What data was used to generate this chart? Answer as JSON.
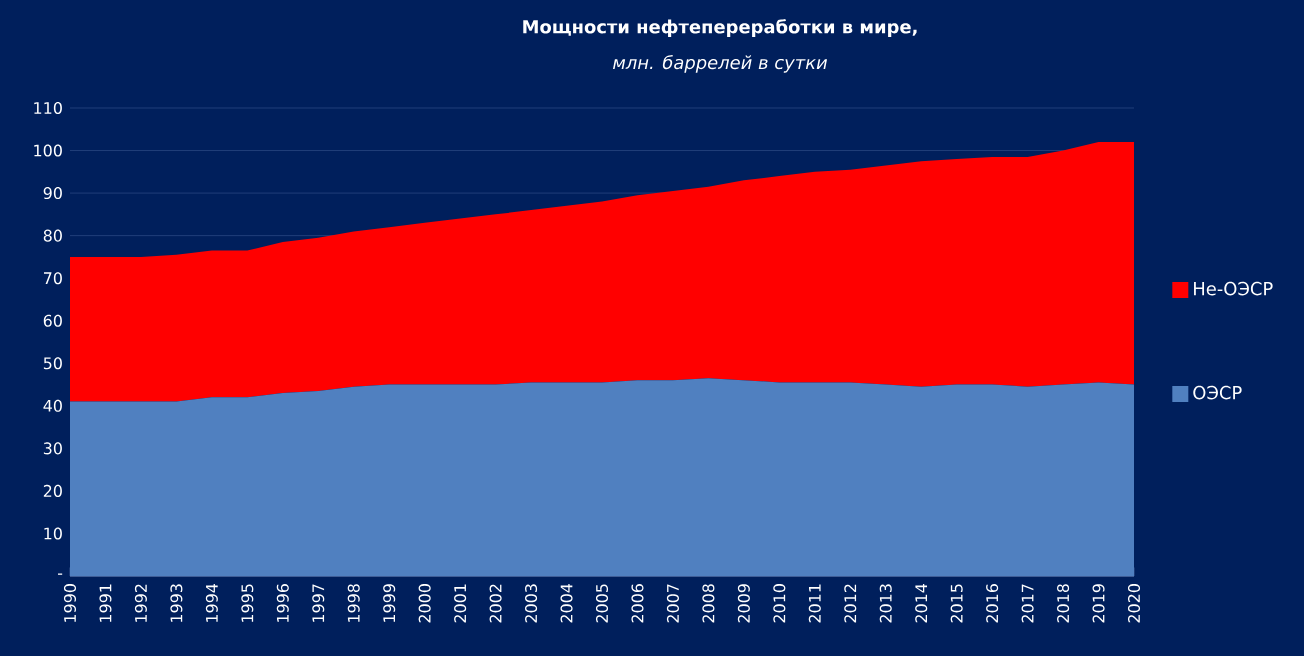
{
  "chart_data": {
    "type": "area",
    "title": "Мощности нефтепереработки в мире,",
    "subtitle": "млн. баррелей в сутки",
    "categories": [
      "1990",
      "1991",
      "1992",
      "1993",
      "1994",
      "1995",
      "1996",
      "1997",
      "1998",
      "1999",
      "2000",
      "2001",
      "2002",
      "2003",
      "2004",
      "2005",
      "2006",
      "2007",
      "2008",
      "2009",
      "2010",
      "2011",
      "2012",
      "2013",
      "2014",
      "2015",
      "2016",
      "2017",
      "2018",
      "2019",
      "2020"
    ],
    "stacked": true,
    "series": [
      {
        "name": "ОЭСР",
        "color": "#5080c0",
        "values": [
          41,
          41,
          41,
          41,
          42,
          42,
          43,
          43.5,
          44.5,
          45,
          45,
          45,
          45,
          45.5,
          45.5,
          45.5,
          46,
          46,
          46.5,
          46,
          45.5,
          45.5,
          45.5,
          45,
          44.5,
          45,
          45,
          44.5,
          45,
          45.5,
          45
        ]
      },
      {
        "name": "Не-ОЭСР",
        "color": "#ff0000",
        "values": [
          34,
          34,
          34,
          34.5,
          34.5,
          34.5,
          35.5,
          36,
          36.5,
          37,
          38,
          39,
          40,
          40.5,
          41.5,
          42.5,
          43.5,
          44.5,
          45,
          47,
          48.5,
          49.5,
          50,
          51.5,
          53,
          53,
          53.5,
          54,
          55,
          56.5,
          57
        ]
      }
    ],
    "ylim": [
      0,
      110
    ],
    "yticks": [
      {
        "value": 0,
        "label": "-"
      },
      10,
      20,
      30,
      40,
      50,
      60,
      70,
      80,
      90,
      100,
      110
    ],
    "grid": "y",
    "legend": "right"
  }
}
